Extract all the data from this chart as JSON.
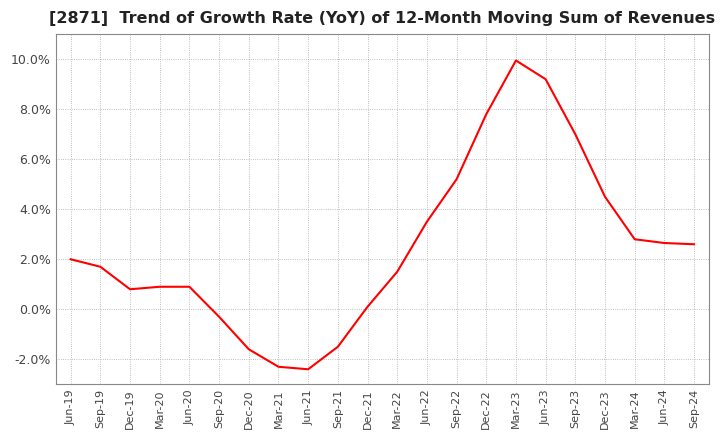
{
  "title": "[2871]  Trend of Growth Rate (YoY) of 12-Month Moving Sum of Revenues",
  "title_fontsize": 11.5,
  "line_color": "#ff0000",
  "background_color": "#ffffff",
  "grid_color": "#aaaaaa",
  "ylim": [
    -3.0,
    11.0
  ],
  "yticks": [
    -2.0,
    0.0,
    2.0,
    4.0,
    6.0,
    8.0,
    10.0
  ],
  "x_labels": [
    "Jun-19",
    "Sep-19",
    "Dec-19",
    "Mar-20",
    "Jun-20",
    "Sep-20",
    "Dec-20",
    "Mar-21",
    "Jun-21",
    "Sep-21",
    "Dec-21",
    "Mar-22",
    "Jun-22",
    "Sep-22",
    "Dec-22",
    "Mar-23",
    "Jun-23",
    "Sep-23",
    "Dec-23",
    "Mar-24",
    "Jun-24",
    "Sep-24"
  ],
  "y_values": [
    2.0,
    1.7,
    0.8,
    0.9,
    0.9,
    -0.3,
    -1.6,
    -2.3,
    -2.4,
    -1.5,
    0.1,
    1.5,
    3.5,
    5.2,
    7.8,
    9.95,
    9.2,
    7.0,
    4.5,
    2.8,
    2.65,
    2.6
  ]
}
